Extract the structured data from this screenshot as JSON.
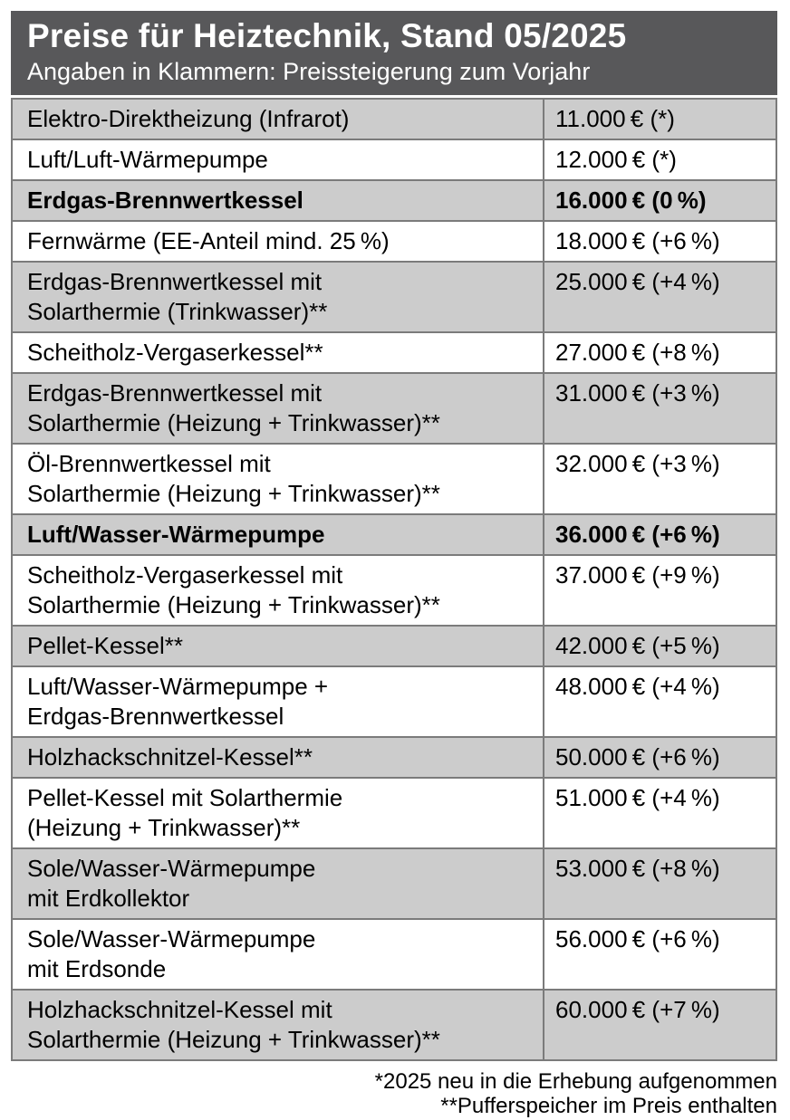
{
  "header": {
    "title": "Preise für Heiztechnik, Stand 05/2025",
    "subtitle": "Angaben in Klammern: Preissteigerung zum Vorjahr"
  },
  "table": {
    "rows": [
      {
        "name": "Elektro-Direktheizung (Infrarot)",
        "price": "11.000 € (*)",
        "bold": false
      },
      {
        "name": "Luft/Luft-Wärmepumpe",
        "price": "12.000 € (*)",
        "bold": false
      },
      {
        "name": "Erdgas-Brennwertkessel",
        "price": "16.000 € (0 %)",
        "bold": true
      },
      {
        "name": "Fernwärme (EE-Anteil mind. 25 %)",
        "price": "18.000 € (+6 %)",
        "bold": false
      },
      {
        "name": "Erdgas-Brennwertkessel mit\nSolarthermie (Trinkwasser)**",
        "price": "25.000 € (+4 %)",
        "bold": false
      },
      {
        "name": "Scheitholz-Vergaserkessel**",
        "price": "27.000 € (+8 %)",
        "bold": false
      },
      {
        "name": "Erdgas-Brennwertkessel mit\nSolarthermie (Heizung + Trinkwasser)**",
        "price": "31.000 € (+3 %)",
        "bold": false
      },
      {
        "name": "Öl-Brennwertkessel mit\nSolarthermie (Heizung + Trinkwasser)**",
        "price": "32.000 € (+3 %)",
        "bold": false
      },
      {
        "name": "Luft/Wasser-Wärmepumpe",
        "price": "36.000 € (+6 %)",
        "bold": true
      },
      {
        "name": "Scheitholz-Vergaserkessel mit\nSolarthermie (Heizung + Trinkwasser)**",
        "price": "37.000 € (+9 %)",
        "bold": false
      },
      {
        "name": "Pellet-Kessel**",
        "price": "42.000 € (+5 %)",
        "bold": false
      },
      {
        "name": "Luft/Wasser-Wärmepumpe +\nErdgas-Brennwertkessel",
        "price": "48.000 € (+4 %)",
        "bold": false
      },
      {
        "name": "Holzhackschnitzel-Kessel**",
        "price": "50.000 € (+6 %)",
        "bold": false
      },
      {
        "name": "Pellet-Kessel mit Solarthermie\n(Heizung + Trinkwasser)**",
        "price": "51.000 € (+4 %)",
        "bold": false
      },
      {
        "name": "Sole/Wasser-Wärmepumpe\nmit Erdkollektor",
        "price": "53.000 € (+8 %)",
        "bold": false
      },
      {
        "name": "Sole/Wasser-Wärmepumpe\nmit Erdsonde",
        "price": "56.000 € (+6 %)",
        "bold": false
      },
      {
        "name": "Holzhackschnitzel-Kessel mit\nSolarthermie (Heizung + Trinkwasser)**",
        "price": "60.000 € (+7 %)",
        "bold": false
      }
    ]
  },
  "footnotes": [
    "*2025 neu in die Erhebung aufgenommen",
    "**Pufferspeicher im Preis enthalten"
  ],
  "colors": {
    "header_bg": "#58585a",
    "header_text": "#ffffff",
    "row_gray": "#cccccc",
    "row_white": "#ffffff",
    "border": "#7b7b7b",
    "text": "#000000"
  },
  "chart_data": {
    "type": "table",
    "title": "Preise für Heiztechnik, Stand 05/2025",
    "subtitle": "Angaben in Klammern: Preissteigerung zum Vorjahr",
    "unit": "EUR",
    "rows": [
      {
        "label": "Elektro-Direktheizung (Infrarot)",
        "price_eur": 11000,
        "change_pct": null,
        "new_in_2025": true,
        "highlighted": false
      },
      {
        "label": "Luft/Luft-Wärmepumpe",
        "price_eur": 12000,
        "change_pct": null,
        "new_in_2025": true,
        "highlighted": false
      },
      {
        "label": "Erdgas-Brennwertkessel",
        "price_eur": 16000,
        "change_pct": 0,
        "new_in_2025": false,
        "highlighted": true
      },
      {
        "label": "Fernwärme (EE-Anteil mind. 25 %)",
        "price_eur": 18000,
        "change_pct": 6,
        "new_in_2025": false,
        "highlighted": false
      },
      {
        "label": "Erdgas-Brennwertkessel mit Solarthermie (Trinkwasser)**",
        "price_eur": 25000,
        "change_pct": 4,
        "new_in_2025": false,
        "highlighted": false
      },
      {
        "label": "Scheitholz-Vergaserkessel**",
        "price_eur": 27000,
        "change_pct": 8,
        "new_in_2025": false,
        "highlighted": false
      },
      {
        "label": "Erdgas-Brennwertkessel mit Solarthermie (Heizung + Trinkwasser)**",
        "price_eur": 31000,
        "change_pct": 3,
        "new_in_2025": false,
        "highlighted": false
      },
      {
        "label": "Öl-Brennwertkessel mit Solarthermie (Heizung + Trinkwasser)**",
        "price_eur": 32000,
        "change_pct": 3,
        "new_in_2025": false,
        "highlighted": false
      },
      {
        "label": "Luft/Wasser-Wärmepumpe",
        "price_eur": 36000,
        "change_pct": 6,
        "new_in_2025": false,
        "highlighted": true
      },
      {
        "label": "Scheitholz-Vergaserkessel mit Solarthermie (Heizung + Trinkwasser)**",
        "price_eur": 37000,
        "change_pct": 9,
        "new_in_2025": false,
        "highlighted": false
      },
      {
        "label": "Pellet-Kessel**",
        "price_eur": 42000,
        "change_pct": 5,
        "new_in_2025": false,
        "highlighted": false
      },
      {
        "label": "Luft/Wasser-Wärmepumpe + Erdgas-Brennwertkessel",
        "price_eur": 48000,
        "change_pct": 4,
        "new_in_2025": false,
        "highlighted": false
      },
      {
        "label": "Holzhackschnitzel-Kessel**",
        "price_eur": 50000,
        "change_pct": 6,
        "new_in_2025": false,
        "highlighted": false
      },
      {
        "label": "Pellet-Kessel mit Solarthermie (Heizung + Trinkwasser)**",
        "price_eur": 51000,
        "change_pct": 4,
        "new_in_2025": false,
        "highlighted": false
      },
      {
        "label": "Sole/Wasser-Wärmepumpe mit Erdkollektor",
        "price_eur": 53000,
        "change_pct": 8,
        "new_in_2025": false,
        "highlighted": false
      },
      {
        "label": "Sole/Wasser-Wärmepumpe mit Erdsonde",
        "price_eur": 56000,
        "change_pct": 6,
        "new_in_2025": false,
        "highlighted": false
      },
      {
        "label": "Holzhackschnitzel-Kessel mit Solarthermie (Heizung + Trinkwasser)**",
        "price_eur": 60000,
        "change_pct": 7,
        "new_in_2025": false,
        "highlighted": false
      }
    ],
    "footnotes": [
      "*2025 neu in die Erhebung aufgenommen",
      "**Pufferspeicher im Preis enthalten"
    ]
  }
}
